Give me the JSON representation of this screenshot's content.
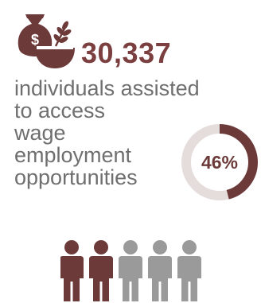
{
  "stats": {
    "number": "30,337",
    "description_lines": [
      "individuals assisted",
      "to access",
      "wage",
      "employment",
      "opportunities"
    ],
    "percentage_label": "46%",
    "percentage_value": 46
  },
  "colors": {
    "accent": "#6d3a3a",
    "accent_light": "#7b3f3f",
    "ring_bg": "#e4dddb",
    "text": "#6f6f6f",
    "person_gray": "#9a9a9a"
  },
  "icons": {
    "money": "money-bag-wheat-icon",
    "people": "people-icon"
  },
  "people": {
    "highlighted": 2,
    "total": 5
  }
}
